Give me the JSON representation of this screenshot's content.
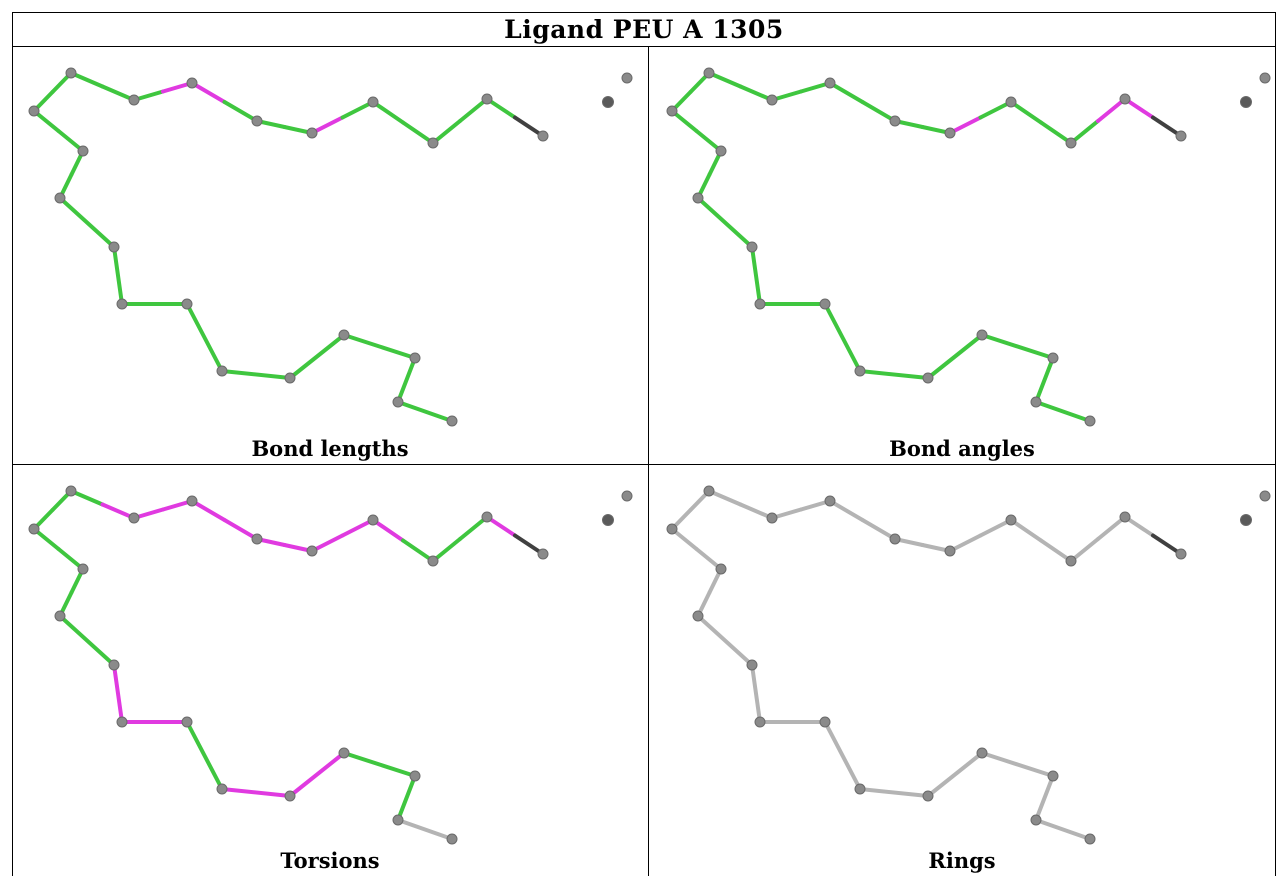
{
  "title": "Ligand PEU A 1305",
  "colors": {
    "good": "#3fc63f",
    "outlier": "#e03ae0",
    "neutral": "#b4b4b4",
    "dark": "#404040",
    "atom": "#8a8a8a"
  },
  "panels": [
    {
      "caption": "Bond lengths",
      "bond_status": [
        "good",
        "good",
        "good",
        "good",
        "good",
        "good",
        "good",
        "good",
        "good",
        "good",
        "good",
        "good",
        "good",
        "good",
        "good",
        "good",
        "good",
        "good",
        "outlier",
        "outlier",
        "good",
        "good",
        "good",
        "outlier",
        "good",
        "good",
        "good",
        "good",
        "good",
        "good",
        "dark"
      ]
    },
    {
      "caption": "Bond angles",
      "bond_status": [
        "good",
        "good",
        "good",
        "good",
        "good",
        "good",
        "good",
        "good",
        "good",
        "good",
        "good",
        "good",
        "good",
        "good",
        "good",
        "good",
        "good",
        "good",
        "good",
        "good",
        "good",
        "good",
        "good",
        "outlier",
        "good",
        "good",
        "good",
        "good",
        "outlier",
        "outlier",
        "dark"
      ]
    },
    {
      "caption": "Torsions",
      "bond_status": [
        "neutral",
        "good",
        "good",
        "outlier",
        "outlier",
        "good",
        "outlier",
        "outlier",
        "good",
        "good",
        "good",
        "good",
        "good",
        "good",
        "good",
        "good",
        "outlier",
        "outlier",
        "outlier",
        "outlier",
        "outlier",
        "outlier",
        "outlier",
        "outlier",
        "outlier",
        "outlier",
        "good",
        "good",
        "good",
        "outlier",
        "dark"
      ]
    },
    {
      "caption": "Rings",
      "bond_status": [
        "neutral",
        "neutral",
        "neutral",
        "neutral",
        "neutral",
        "neutral",
        "neutral",
        "neutral",
        "neutral",
        "neutral",
        "neutral",
        "neutral",
        "neutral",
        "neutral",
        "neutral",
        "neutral",
        "neutral",
        "neutral",
        "neutral",
        "neutral",
        "neutral",
        "neutral",
        "neutral",
        "neutral",
        "neutral",
        "neutral",
        "neutral",
        "neutral",
        "neutral",
        "neutral",
        "dark"
      ]
    }
  ]
}
